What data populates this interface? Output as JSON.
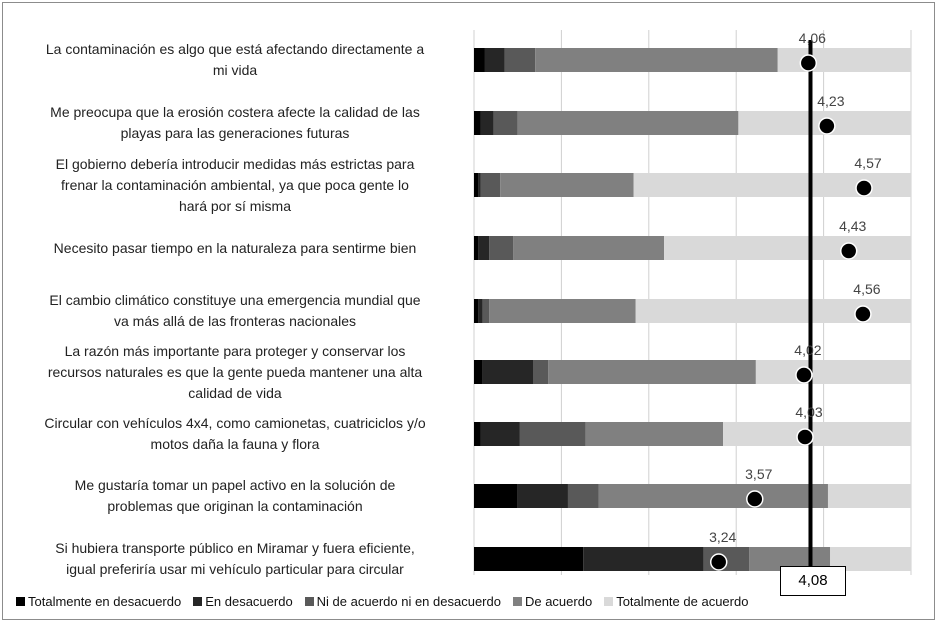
{
  "chart_data": {
    "type": "bar",
    "orientation": "horizontal",
    "stacked": "100%",
    "categories": [
      "La contaminación es algo que está afectando directamente a mi vida",
      "Me preocupa que la erosión costera afecte la calidad de las playas para las generaciones futuras",
      "El gobierno debería introducir medidas más estrictas para frenar la contaminación ambiental, ya que poca gente lo hará por sí misma",
      "Necesito pasar tiempo en la naturaleza para sentirme bien",
      "El cambio climático constituye una emergencia mundial que va más allá de las fronteras nacionales",
      "La razón más importante para proteger y conservar los recursos naturales es que la gente pueda mantener una alta calidad de vida",
      "Circular con vehículos 4x4, como camionetas, cuatriciclos y/o motos daña la fauna y flora",
      "Me gustaría tomar un papel activo en la solución de problemas que originan la contaminación",
      "Si hubiera transporte público en Miramar y fuera eficiente, igual preferiría usar mi vehículo particular para circular"
    ],
    "label_lines": [
      [
        "La contaminación es algo que está afectando directamente a",
        "mi vida"
      ],
      [
        "Me preocupa que la erosión costera afecte la calidad de las",
        "playas para las generaciones futuras"
      ],
      [
        "El gobierno debería introducir medidas más estrictas para",
        "frenar la contaminación ambiental, ya que poca gente lo",
        "hará por sí misma"
      ],
      [
        "Necesito pasar tiempo en la naturaleza para sentirme bien"
      ],
      [
        "El cambio climático constituye una emergencia mundial que",
        "va más allá de las fronteras nacionales"
      ],
      [
        "La razón más importante para proteger y conservar los",
        "recursos naturales es que la gente pueda mantener una alta",
        "calidad de vida"
      ],
      [
        "Circular con vehículos 4x4, como camionetas, cuatriciclos y/o",
        "motos daña la fauna y flora"
      ],
      [
        "Me gustaría tomar un papel activo en la solución de",
        "problemas que originan la contaminación"
      ],
      [
        "Si hubiera transporte público en Miramar y fuera eficiente,",
        "igual preferiría usar mi vehículo particular para circular"
      ]
    ],
    "series": [
      {
        "name": "Totalmente en desacuerdo",
        "color": "#000000",
        "values": [
          2.5,
          1.5,
          1,
          1,
          1,
          2,
          1.5,
          10,
          25
        ]
      },
      {
        "name": "En desacuerdo",
        "color": "#262626",
        "values": [
          4.5,
          3,
          0.5,
          2.5,
          1,
          11.5,
          9,
          11.5,
          27.5
        ]
      },
      {
        "name": "Ni de acuerdo ni en desacuerdo",
        "color": "#595959",
        "values": [
          7,
          5.5,
          4.5,
          5.5,
          1.5,
          3.5,
          15,
          7,
          10.5
        ]
      },
      {
        "name": "De acuerdo",
        "color": "#808080",
        "values": [
          55.5,
          50.5,
          30.5,
          34.5,
          33.5,
          47.5,
          31.5,
          52.5,
          18.5
        ]
      },
      {
        "name": "Totalmente de acuerdo",
        "color": "#d9d9d9",
        "values": [
          30.5,
          39.5,
          63.5,
          56.5,
          63,
          35.5,
          43,
          19,
          18.5
        ]
      }
    ],
    "means": [
      4.06,
      4.23,
      4.57,
      4.43,
      4.56,
      4.02,
      4.03,
      3.57,
      3.24
    ],
    "mean_labels": [
      "4,06",
      "4,23",
      "4,57",
      "4,43",
      "4,56",
      "4,02",
      "4,03",
      "3,57",
      "3,24"
    ],
    "mean_axis_range": [
      1,
      5
    ],
    "reference_line": {
      "value": 4.08,
      "label": "4,08"
    },
    "xlim": [
      0,
      100
    ],
    "grid": true,
    "legend_position": "bottom"
  }
}
